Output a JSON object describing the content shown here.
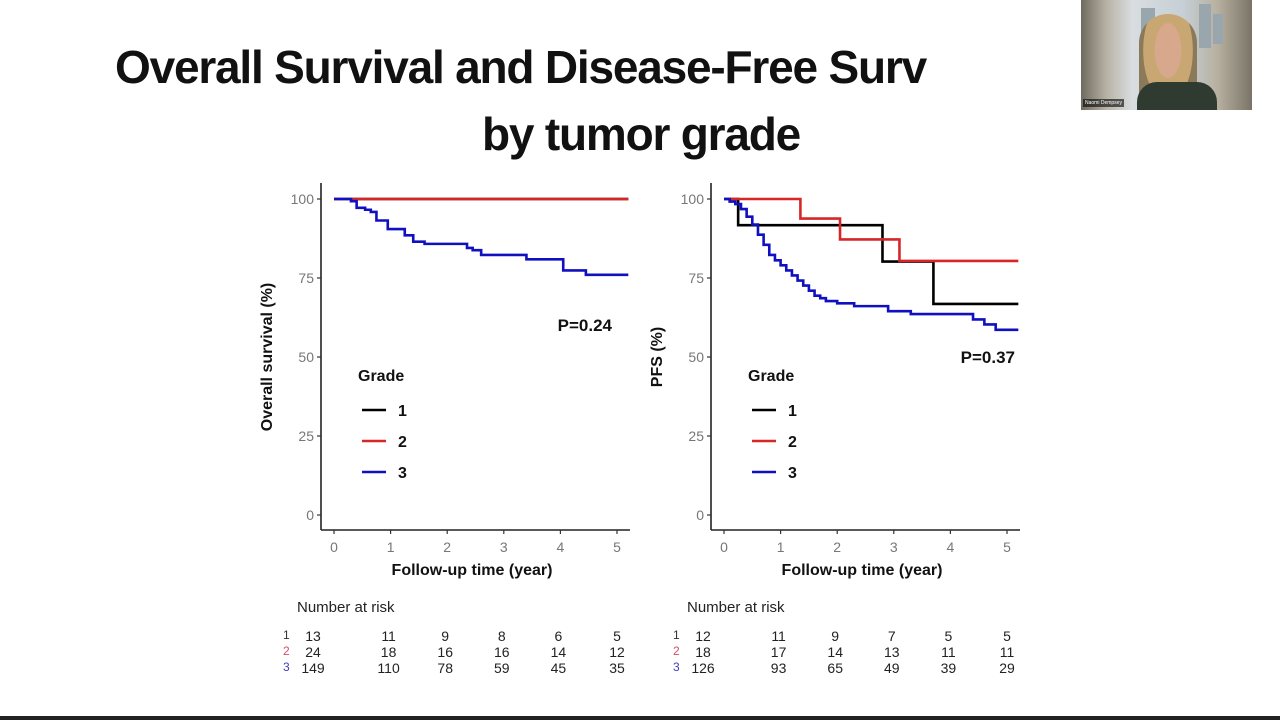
{
  "slide": {
    "title_line1": "Overall Survival and Disease-Free Surv",
    "title_line2": "by tumor grade"
  },
  "webcam": {
    "participant_name": "Naomi Dempsey"
  },
  "colors": {
    "grade1": "#000000",
    "grade2": "#d62728",
    "grade3": "#1010c0"
  },
  "chart_data": [
    {
      "type": "line",
      "subtype": "kaplan-meier",
      "title": "",
      "xlabel": "Follow-up time (year)",
      "ylabel": "Overall survival (%)",
      "xlim": [
        0,
        5.2
      ],
      "ylim": [
        0,
        100
      ],
      "xticks": [
        "0",
        "1",
        "2",
        "3",
        "4",
        "5"
      ],
      "yticks": [
        "0",
        "25",
        "50",
        "75",
        "100"
      ],
      "grid": false,
      "annotation": "P=0.24",
      "legend": {
        "title": "Grade",
        "entries": [
          "1",
          "2",
          "3"
        ],
        "placement": "center-left"
      },
      "series": [
        {
          "name": "1",
          "x": [
            0,
            5.2
          ],
          "y": [
            100,
            100
          ]
        },
        {
          "name": "2",
          "x": [
            0,
            5.2
          ],
          "y": [
            100,
            100
          ]
        },
        {
          "name": "3",
          "x": [
            0,
            0.3,
            0.4,
            0.55,
            0.65,
            0.75,
            0.95,
            1.25,
            1.4,
            1.6,
            1.7,
            2.35,
            2.45,
            2.6,
            3.4,
            4.05,
            4.45,
            5.2
          ],
          "y": [
            100,
            99.3,
            97.2,
            96.6,
            95.9,
            93.2,
            90.5,
            88.5,
            86.5,
            85.8,
            85.8,
            84.5,
            83.8,
            82.3,
            80.9,
            77.4,
            76.0,
            76.0
          ]
        }
      ],
      "risk_table": {
        "title": "Number at risk",
        "times": [
          0,
          1,
          2,
          3,
          4,
          5
        ],
        "rows": [
          {
            "label": "1",
            "values": [
              "13",
              "11",
              "9",
              "8",
              "6",
              "5"
            ]
          },
          {
            "label": "2",
            "values": [
              "24",
              "18",
              "16",
              "16",
              "14",
              "12"
            ]
          },
          {
            "label": "3",
            "values": [
              "149",
              "110",
              "78",
              "59",
              "45",
              "35"
            ]
          }
        ]
      }
    },
    {
      "type": "line",
      "subtype": "kaplan-meier",
      "title": "",
      "xlabel": "Follow-up time (year)",
      "ylabel": "PFS (%)",
      "xlim": [
        0,
        5.2
      ],
      "ylim": [
        0,
        100
      ],
      "xticks": [
        "0",
        "1",
        "2",
        "3",
        "4",
        "5"
      ],
      "yticks": [
        "0",
        "25",
        "50",
        "75",
        "100"
      ],
      "grid": false,
      "annotation": "P=0.37",
      "legend": {
        "title": "Grade",
        "entries": [
          "1",
          "2",
          "3"
        ],
        "placement": "center-left"
      },
      "series": [
        {
          "name": "1",
          "x": [
            0,
            0.25,
            2.8,
            3.7,
            5.2
          ],
          "y": [
            100,
            91.7,
            80.2,
            66.8,
            66.8
          ]
        },
        {
          "name": "2",
          "x": [
            0,
            1.35,
            2.05,
            3.1,
            5.2
          ],
          "y": [
            100,
            93.8,
            87.2,
            80.4,
            80.4
          ]
        },
        {
          "name": "3",
          "x": [
            0,
            0.1,
            0.2,
            0.3,
            0.4,
            0.5,
            0.6,
            0.7,
            0.8,
            0.9,
            1.0,
            1.1,
            1.2,
            1.3,
            1.4,
            1.5,
            1.6,
            1.7,
            1.8,
            1.9,
            2.0,
            2.3,
            2.9,
            3.3,
            4.2,
            4.4,
            4.6,
            4.8,
            5.2
          ],
          "y": [
            100,
            99.2,
            98.4,
            96.8,
            94.4,
            91.9,
            88.7,
            85.5,
            82.3,
            80.6,
            79.0,
            77.4,
            75.8,
            74.2,
            72.6,
            71.0,
            69.4,
            68.6,
            67.7,
            67.7,
            67.0,
            66.1,
            64.5,
            63.6,
            63.6,
            61.9,
            60.3,
            58.6,
            58.6
          ]
        }
      ],
      "risk_table": {
        "title": "Number at risk",
        "times": [
          0,
          1,
          2,
          3,
          4,
          5
        ],
        "rows": [
          {
            "label": "1",
            "values": [
              "12",
              "11",
              "9",
              "7",
              "5",
              "5"
            ]
          },
          {
            "label": "2",
            "values": [
              "18",
              "17",
              "14",
              "13",
              "11",
              "11"
            ]
          },
          {
            "label": "3",
            "values": [
              "126",
              "93",
              "65",
              "49",
              "39",
              "29"
            ]
          }
        ]
      }
    }
  ]
}
